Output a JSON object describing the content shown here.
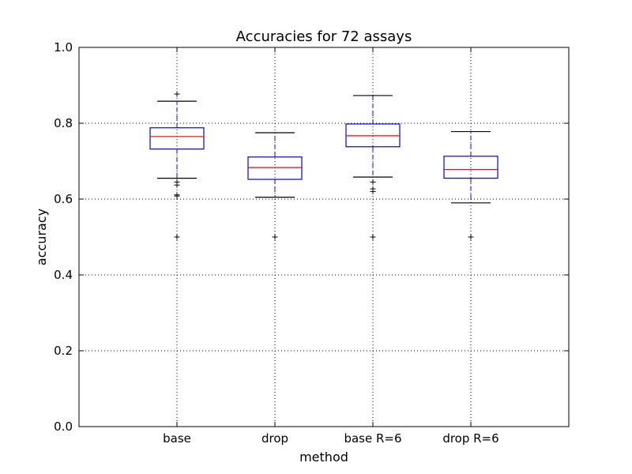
{
  "chart_data": {
    "type": "boxplot",
    "title": "Accuracies for 72 assays",
    "xlabel": "method",
    "ylabel": "accuracy",
    "ylim": [
      0.0,
      1.0
    ],
    "yticks": [
      "0.0",
      "0.2",
      "0.4",
      "0.6",
      "0.8",
      "1.0"
    ],
    "grid": true,
    "colors": {
      "box": "#0000ff",
      "median": "#ff0000",
      "whisker": "#0000ff",
      "cap": "#000000",
      "flier": "#000000"
    },
    "categories": [
      "base",
      "drop",
      "base R=6",
      "drop R=6"
    ],
    "boxes": [
      {
        "label": "base",
        "whislo": 0.655,
        "q1": 0.732,
        "med": 0.765,
        "q3": 0.788,
        "whishi": 0.858,
        "fliers": [
          0.877,
          0.645,
          0.637,
          0.611,
          0.608,
          0.5
        ]
      },
      {
        "label": "drop",
        "whislo": 0.605,
        "q1": 0.652,
        "med": 0.683,
        "q3": 0.711,
        "whishi": 0.775,
        "fliers": [
          0.5
        ]
      },
      {
        "label": "base R=6",
        "whislo": 0.658,
        "q1": 0.738,
        "med": 0.767,
        "q3": 0.798,
        "whishi": 0.873,
        "fliers": [
          0.645,
          0.627,
          0.62,
          0.5
        ]
      },
      {
        "label": "drop R=6",
        "whislo": 0.59,
        "q1": 0.655,
        "med": 0.678,
        "q3": 0.713,
        "whishi": 0.778,
        "fliers": [
          0.5
        ]
      }
    ]
  }
}
